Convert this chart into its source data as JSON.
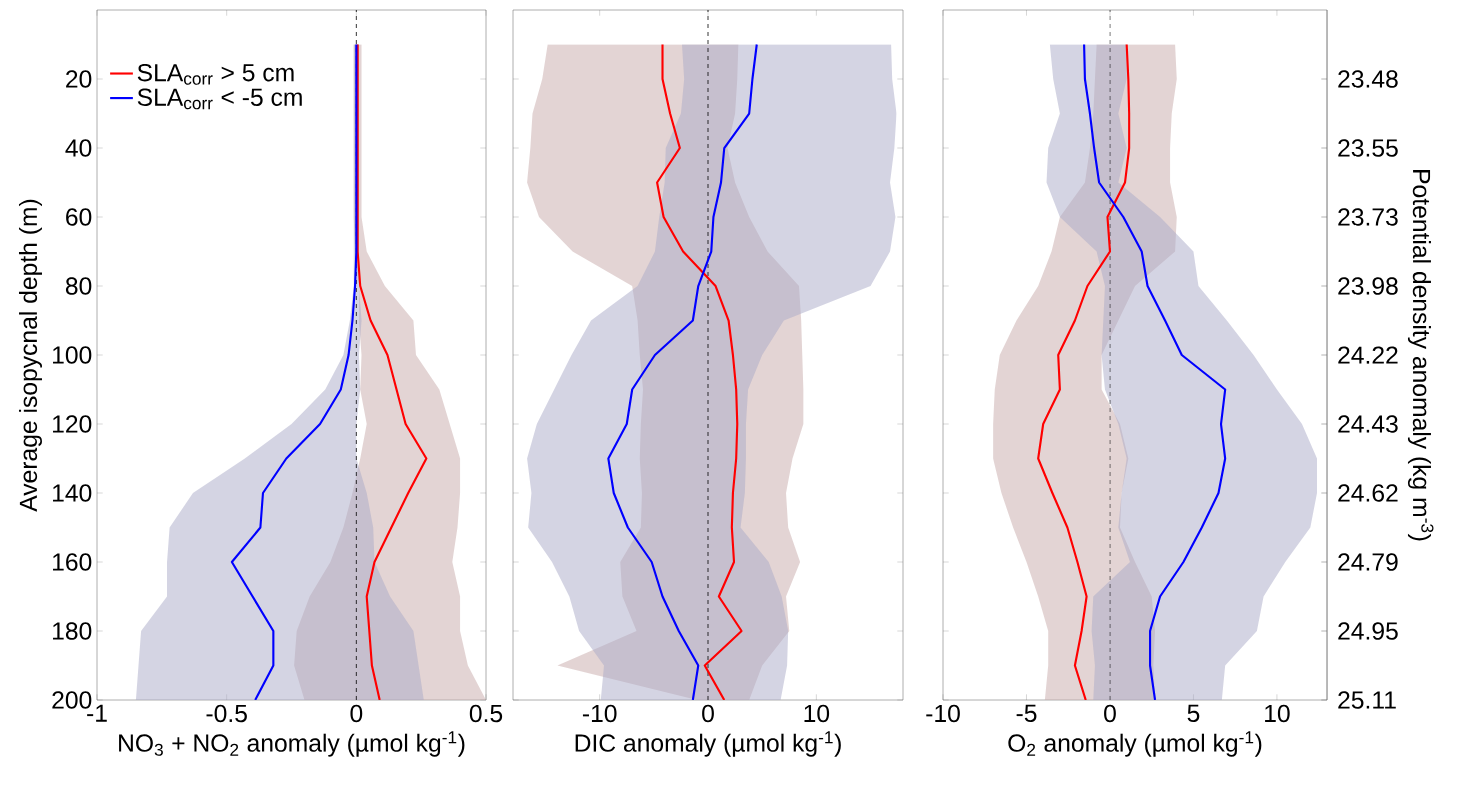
{
  "chart_data": [
    {
      "type": "line",
      "orientation": "horizontal",
      "xlabel": "NO$_{3}$ + NO$_{2}$ anomaly (µmol kg$^{-1}$)",
      "ylabel": "Average isopycnal depth (m)",
      "x": [
        10,
        20,
        30,
        40,
        50,
        60,
        70,
        80,
        90,
        100,
        110,
        120,
        130,
        140,
        150,
        160,
        170,
        180,
        190,
        200
      ],
      "xlim": [
        -1,
        0.5
      ],
      "xticks": [
        -1,
        -0.5,
        0,
        0.5
      ],
      "ylim": [
        200,
        0
      ],
      "yticks": [
        20,
        40,
        60,
        80,
        100,
        120,
        140,
        160,
        180,
        200
      ],
      "legend": "top left",
      "ref_lines": [
        {
          "axis": "x",
          "value": 0,
          "color": "#000000",
          "line_style": "dashed"
        }
      ],
      "series": [
        {
          "name": "SLA$_{corr}$ > 5 cm",
          "color": "#ff0000",
          "values": [
            0.005,
            0.005,
            0.005,
            0.005,
            0.005,
            0.005,
            0.005,
            0.015,
            0.055,
            0.12,
            0.155,
            0.19,
            0.27,
            0.2,
            0.135,
            0.07,
            0.04,
            0.05,
            0.06,
            0.09
          ],
          "lower": [
            -0.01,
            -0.01,
            -0.01,
            -0.01,
            -0.01,
            -0.01,
            -0.005,
            0.01,
            0.01,
            0.02,
            0.015,
            0.04,
            0.015,
            -0.015,
            -0.05,
            -0.1,
            -0.18,
            -0.23,
            -0.24,
            -0.2
          ],
          "upper": [
            0.02,
            0.02,
            0.02,
            0.02,
            0.02,
            0.02,
            0.04,
            0.11,
            0.22,
            0.23,
            0.32,
            0.36,
            0.4,
            0.4,
            0.39,
            0.37,
            0.4,
            0.4,
            0.43,
            0.5
          ]
        },
        {
          "name": "SLA$_{corr}$ < -5 cm",
          "color": "#0000ff",
          "values": [
            0,
            0,
            0,
            0,
            0,
            0,
            0,
            -0.005,
            -0.015,
            -0.03,
            -0.06,
            -0.14,
            -0.27,
            -0.36,
            -0.37,
            -0.48,
            -0.4,
            -0.32,
            -0.32,
            -0.39
          ],
          "lower": [
            -0.01,
            -0.01,
            -0.01,
            -0.01,
            -0.01,
            -0.01,
            -0.01,
            -0.01,
            -0.025,
            -0.05,
            -0.12,
            -0.25,
            -0.43,
            -0.63,
            -0.72,
            -0.73,
            -0.73,
            -0.83,
            -0.84,
            -0.85
          ],
          "upper": [
            0.01,
            0.01,
            0.01,
            0.01,
            0.01,
            0.01,
            0.01,
            0.01,
            0.02,
            0.01,
            0.015,
            0,
            0,
            0.04,
            0.065,
            0.07,
            0.13,
            0.22,
            0.24,
            0.26
          ]
        }
      ]
    },
    {
      "type": "line",
      "orientation": "horizontal",
      "xlabel": "DIC anomaly (µmol kg$^{-1}$)",
      "x": [
        10,
        20,
        30,
        40,
        50,
        60,
        70,
        80,
        90,
        100,
        110,
        120,
        130,
        140,
        150,
        160,
        170,
        180,
        190,
        200
      ],
      "xlim": [
        -18,
        18
      ],
      "xticks": [
        -10,
        0,
        10
      ],
      "ylim": [
        200,
        0
      ],
      "yticks": [
        20,
        40,
        60,
        80,
        100,
        120,
        140,
        160,
        180,
        200
      ],
      "tick_labels": "x",
      "ref_lines": [
        {
          "axis": "x",
          "value": 0,
          "color": "#000000",
          "line_style": "dashed"
        }
      ],
      "series": [
        {
          "color": "#ff0000",
          "values": [
            -4.2,
            -4.2,
            -3.5,
            -2.6,
            -4.7,
            -4.1,
            -2.3,
            0.7,
            1.9,
            2.3,
            2.6,
            2.7,
            2.6,
            2.3,
            2.2,
            2.4,
            1.0,
            3.1,
            -0.3,
            1.5
          ],
          "lower": [
            -14.8,
            -15.3,
            -16.2,
            -16.4,
            -16.7,
            -15.6,
            -12.5,
            -7.0,
            -6.5,
            -6.3,
            -6.0,
            -6.2,
            -6.3,
            -6.1,
            -6.2,
            -8.1,
            -7.9,
            -6.6,
            -13.9,
            -1.0
          ],
          "upper": [
            2.8,
            2.7,
            2.5,
            1.8,
            2.5,
            3.8,
            5.5,
            8.4,
            8.6,
            8.7,
            8.8,
            8.8,
            7.8,
            7.2,
            7.4,
            8.5,
            7.2,
            7.5,
            5.0,
            3.8
          ]
        },
        {
          "color": "#0000ff",
          "values": [
            4.5,
            4.1,
            3.8,
            1.5,
            1.2,
            0.5,
            0.3,
            -0.9,
            -1.4,
            -4.9,
            -7.0,
            -7.5,
            -9.2,
            -8.7,
            -7.4,
            -5.2,
            -4.2,
            -2.7,
            -0.9,
            -1.4
          ],
          "lower": [
            -2.4,
            -2.2,
            -2.5,
            -3.9,
            -4.0,
            -4.5,
            -4.9,
            -6.5,
            -10.8,
            -12.6,
            -14.2,
            -15.8,
            -16.7,
            -16.3,
            -16.6,
            -14.4,
            -12.8,
            -11.9,
            -9.6,
            -9.9
          ],
          "upper": [
            16.9,
            17.0,
            17.4,
            17.2,
            16.8,
            17.3,
            16.8,
            15.0,
            7.0,
            5.0,
            3.7,
            3.5,
            3.5,
            3.4,
            3.0,
            5.6,
            6.8,
            7.4,
            7.3,
            6.7
          ]
        }
      ]
    },
    {
      "type": "line",
      "orientation": "horizontal",
      "xlabel": "O$_{2}$ anomaly (µmol kg$^{-1}$)",
      "y2label": "Potential density anomaly (kg m$^{-3}$)",
      "x": [
        10,
        20,
        30,
        40,
        50,
        60,
        70,
        80,
        90,
        100,
        110,
        120,
        130,
        140,
        150,
        160,
        170,
        180,
        190,
        200
      ],
      "xlim": [
        -10,
        13
      ],
      "xticks": [
        -10,
        -5,
        0,
        5,
        10
      ],
      "ylim": [
        200,
        0
      ],
      "yticks": [
        20,
        40,
        60,
        80,
        100,
        120,
        140,
        160,
        180,
        200
      ],
      "tick_labels": "x",
      "y2_categories": [
        "23.48",
        "23.55",
        "23.73",
        "23.98",
        "24.22",
        "24.43",
        "24.62",
        "24.79",
        "24.95",
        "25.11"
      ],
      "ref_lines": [
        {
          "axis": "x",
          "value": 0,
          "color": "#000000",
          "line_style": "dashed"
        }
      ],
      "series": [
        {
          "color": "#ff0000",
          "values": [
            1.0,
            1.1,
            1.15,
            1.15,
            0.9,
            -0.15,
            0,
            -1.35,
            -2.1,
            -3.1,
            -3.0,
            -4.0,
            -4.3,
            -3.45,
            -2.55,
            -1.95,
            -1.4,
            -1.7,
            -2.1,
            -1.45
          ],
          "lower": [
            -0.8,
            -0.9,
            -1.0,
            -1.2,
            -1.5,
            -3.0,
            -3.5,
            -4.3,
            -5.6,
            -6.6,
            -6.9,
            -7.0,
            -7.0,
            -6.5,
            -5.8,
            -5.0,
            -4.3,
            -3.7,
            -3.7,
            -3.9
          ],
          "upper": [
            3.9,
            4.0,
            3.7,
            3.6,
            3.6,
            4.0,
            3.9,
            1.5,
            0.5,
            -0.5,
            -0.5,
            0.6,
            1.1,
            0.7,
            0.6,
            1.5,
            2.5,
            2.7,
            2.6,
            2.7
          ]
        },
        {
          "color": "#0000ff",
          "values": [
            -1.55,
            -1.5,
            -1.2,
            -0.95,
            -0.65,
            0.8,
            1.9,
            2.25,
            3.3,
            4.3,
            6.9,
            6.65,
            6.9,
            6.5,
            5.5,
            4.4,
            3.0,
            2.4,
            2.4,
            2.7
          ],
          "lower": [
            -3.6,
            -3.4,
            -3.0,
            -3.7,
            -3.8,
            -3.0,
            -0.8,
            -0.3,
            -0.4,
            -0.5,
            -0.3,
            0.5,
            1.0,
            0.7,
            0.5,
            1.2,
            -1.0,
            -1.1,
            -0.9,
            -1.0
          ],
          "upper": [
            1.0,
            1.0,
            0.5,
            1.0,
            0.5,
            3.0,
            5.0,
            5.3,
            7.0,
            8.6,
            10.0,
            11.5,
            12.4,
            12.4,
            12.0,
            10.5,
            9.2,
            8.8,
            6.9,
            6.7
          ]
        }
      ]
    }
  ]
}
